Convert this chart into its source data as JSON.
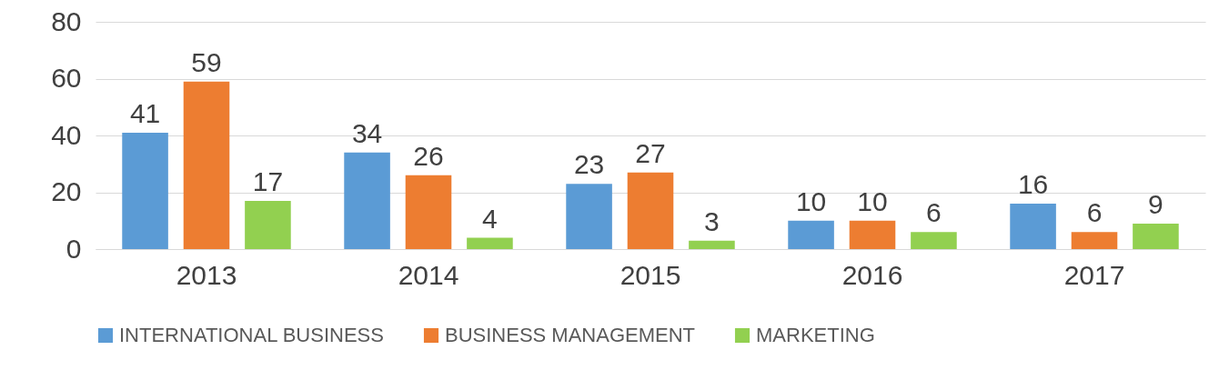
{
  "chart_data": {
    "type": "bar",
    "categories": [
      "2013",
      "2014",
      "2015",
      "2016",
      "2017"
    ],
    "series": [
      {
        "name": "INTERNATIONAL BUSINESS",
        "color": "#5b9bd5",
        "values": [
          41,
          34,
          23,
          10,
          16
        ]
      },
      {
        "name": "BUSINESS MANAGEMENT",
        "color": "#ed7d31",
        "values": [
          59,
          26,
          27,
          10,
          6
        ]
      },
      {
        "name": "MARKETING",
        "color": "#92d050",
        "values": [
          17,
          4,
          3,
          6,
          9
        ]
      }
    ],
    "ylim": [
      0,
      80
    ],
    "yticks": [
      0,
      20,
      40,
      60,
      80
    ],
    "grid": "y",
    "legend": "bottom",
    "data_labels": true
  }
}
